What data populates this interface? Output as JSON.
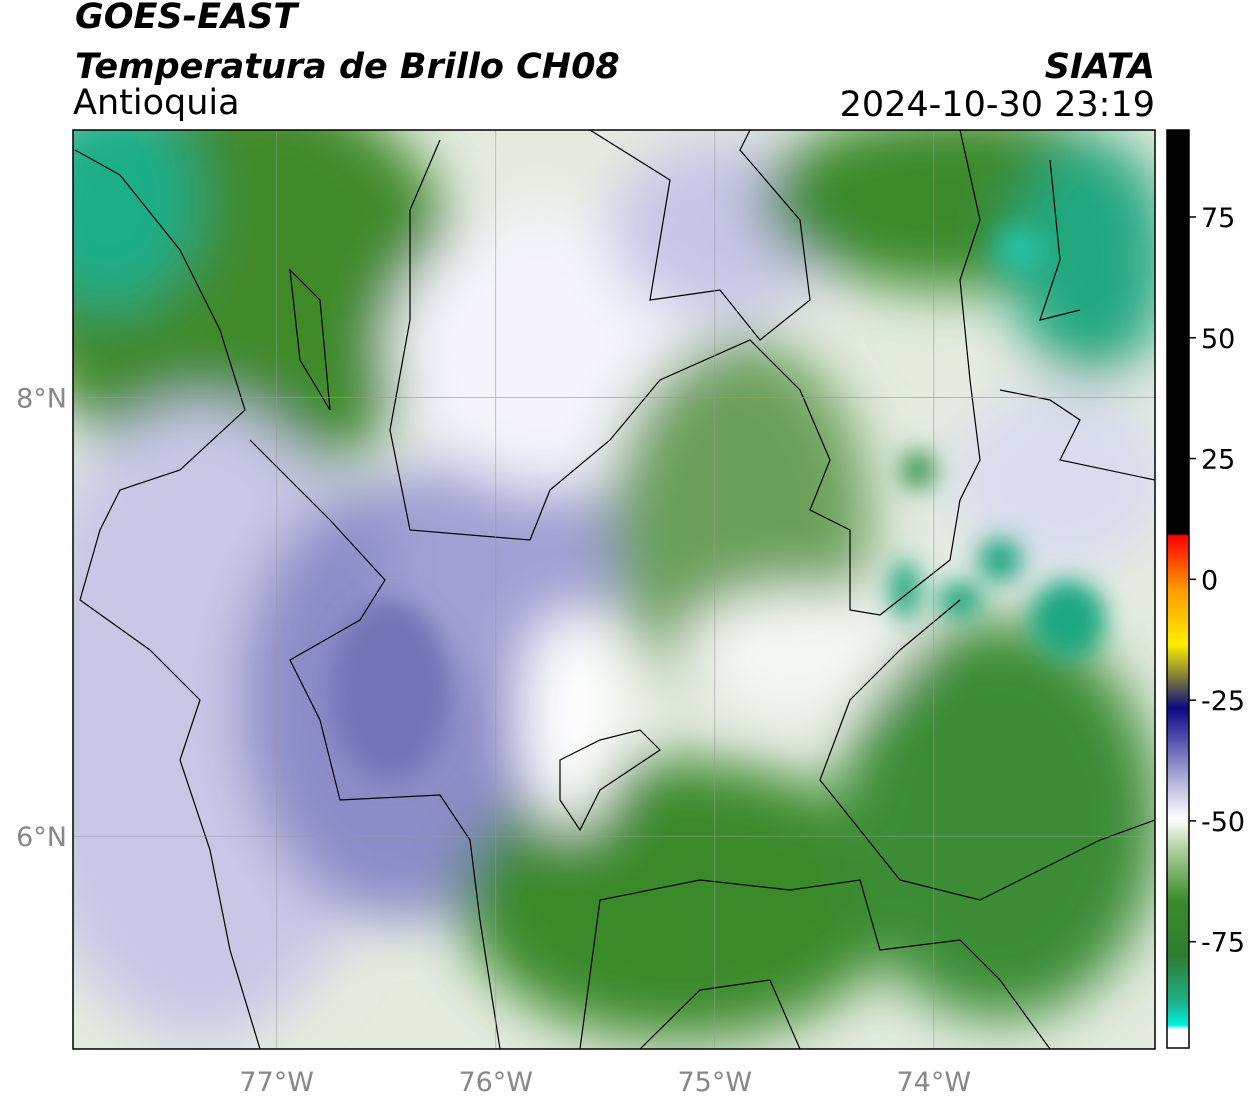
{
  "header": {
    "title": "GOES-EAST",
    "subtitle": "Temperatura de Brillo CH08",
    "region": "Antioquia",
    "source": "SIATA",
    "datetime": "2024-10-30 23:19"
  },
  "map": {
    "xlim": [
      -77.93,
      -72.99
    ],
    "ylim": [
      5.03,
      9.22
    ],
    "xticks": [
      {
        "value": -77,
        "label": "77°W"
      },
      {
        "value": -76,
        "label": "76°W"
      },
      {
        "value": -75,
        "label": "75°W"
      },
      {
        "value": -74,
        "label": "74°W"
      }
    ],
    "yticks": [
      {
        "value": 8,
        "label": "8°N"
      },
      {
        "value": 6,
        "label": "6°N"
      }
    ],
    "grid": true
  },
  "colorbar": {
    "lim": [
      -97,
      93
    ],
    "ticks": [
      75,
      50,
      25,
      0,
      -25,
      -50,
      -75
    ]
  }
}
